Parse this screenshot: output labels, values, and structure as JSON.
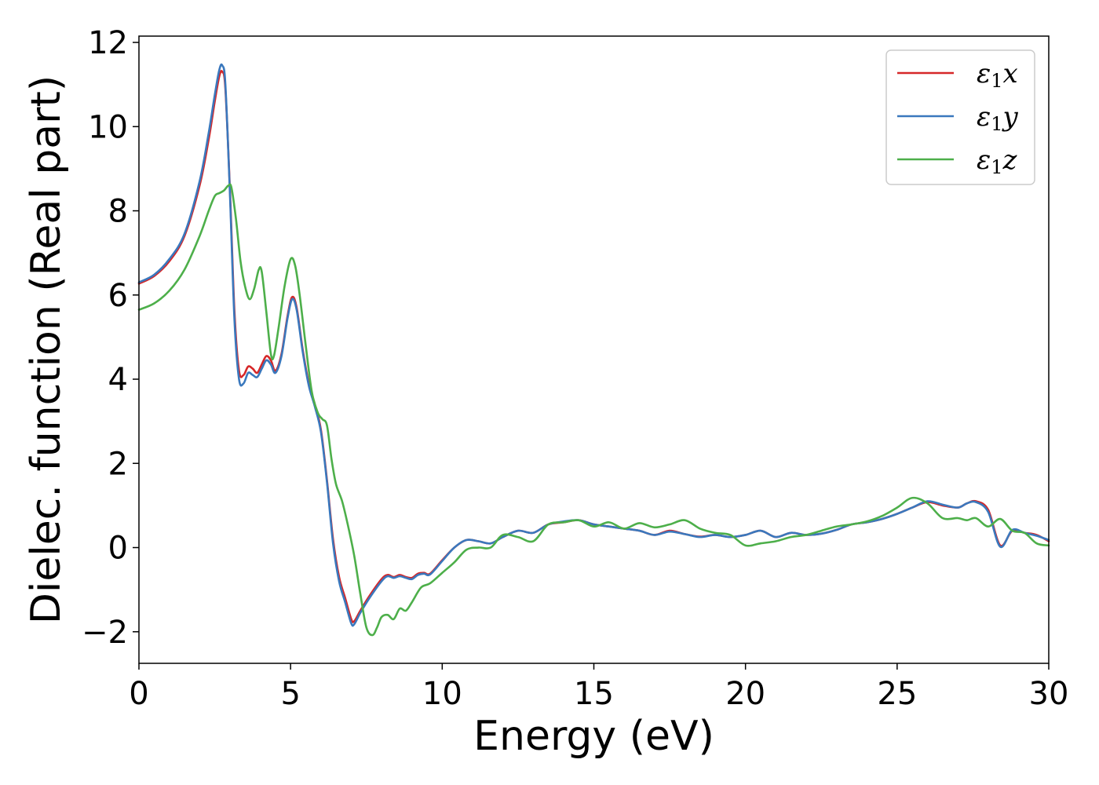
{
  "chart_data": {
    "type": "line",
    "xlabel": "Energy (eV)",
    "ylabel": "Dielec. function (Real part)",
    "xlim": [
      0,
      30
    ],
    "ylim": [
      -2.75,
      12.15
    ],
    "xticks": [
      0,
      5,
      10,
      15,
      20,
      25,
      30
    ],
    "xtick_labels": [
      "0",
      "5",
      "10",
      "15",
      "20",
      "25",
      "30"
    ],
    "yticks": [
      -2,
      0,
      2,
      4,
      6,
      8,
      10,
      12
    ],
    "ytick_labels": [
      "−2",
      "0",
      "2",
      "4",
      "6",
      "8",
      "10",
      "12"
    ],
    "grid": false,
    "legend_position": "top-right",
    "series": [
      {
        "name": "ε1x",
        "legend_main": "ε",
        "legend_sub": "1",
        "legend_tail": "x",
        "color": "#d62728",
        "x": [
          0,
          0.5,
          1.0,
          1.5,
          2.0,
          2.3,
          2.5,
          2.65,
          2.75,
          2.85,
          3.0,
          3.15,
          3.3,
          3.45,
          3.6,
          3.75,
          3.9,
          4.05,
          4.2,
          4.35,
          4.5,
          4.7,
          4.9,
          5.05,
          5.2,
          5.4,
          5.6,
          5.8,
          6.0,
          6.2,
          6.4,
          6.6,
          6.8,
          7.0,
          7.1,
          7.3,
          7.6,
          8.0,
          8.2,
          8.4,
          8.6,
          8.8,
          9.0,
          9.2,
          9.4,
          9.6,
          10.0,
          10.4,
          10.8,
          11.2,
          11.6,
          12.0,
          12.5,
          13.0,
          13.5,
          14.0,
          14.5,
          15.0,
          15.5,
          16.0,
          16.5,
          17.0,
          17.5,
          18.0,
          18.5,
          19.0,
          19.5,
          20.0,
          20.5,
          21.0,
          21.5,
          22.0,
          22.5,
          23.0,
          23.5,
          24.0,
          24.5,
          25.0,
          25.5,
          26.0,
          26.5,
          27.0,
          27.3,
          27.6,
          28.0,
          28.4,
          28.8,
          29.2,
          29.6,
          30.0
        ],
        "y": [
          6.27,
          6.45,
          6.8,
          7.4,
          8.6,
          9.7,
          10.6,
          11.2,
          11.3,
          10.9,
          8.5,
          5.6,
          4.2,
          4.1,
          4.3,
          4.25,
          4.15,
          4.35,
          4.55,
          4.45,
          4.2,
          4.6,
          5.5,
          5.95,
          5.7,
          4.7,
          3.9,
          3.4,
          2.8,
          1.6,
          0.2,
          -0.7,
          -1.2,
          -1.7,
          -1.75,
          -1.5,
          -1.15,
          -0.75,
          -0.65,
          -0.7,
          -0.65,
          -0.7,
          -0.72,
          -0.62,
          -0.6,
          -0.62,
          -0.3,
          0.0,
          0.18,
          0.15,
          0.1,
          0.25,
          0.4,
          0.35,
          0.55,
          0.6,
          0.65,
          0.55,
          0.5,
          0.45,
          0.4,
          0.3,
          0.4,
          0.32,
          0.26,
          0.3,
          0.25,
          0.3,
          0.4,
          0.25,
          0.35,
          0.3,
          0.33,
          0.42,
          0.55,
          0.6,
          0.68,
          0.8,
          0.95,
          1.08,
          1.0,
          0.95,
          1.05,
          1.1,
          0.9,
          0.05,
          0.4,
          0.35,
          0.3,
          0.15
        ]
      },
      {
        "name": "ε1y",
        "legend_main": "ε",
        "legend_sub": "1",
        "legend_tail": "y",
        "color": "#3a78bd",
        "x": [
          0,
          0.5,
          1.0,
          1.5,
          2.0,
          2.3,
          2.5,
          2.65,
          2.75,
          2.85,
          3.0,
          3.15,
          3.3,
          3.45,
          3.6,
          3.75,
          3.9,
          4.05,
          4.2,
          4.35,
          4.5,
          4.7,
          4.9,
          5.05,
          5.2,
          5.4,
          5.6,
          5.8,
          6.0,
          6.2,
          6.4,
          6.6,
          6.8,
          7.0,
          7.1,
          7.3,
          7.6,
          8.0,
          8.2,
          8.4,
          8.6,
          8.8,
          9.0,
          9.2,
          9.4,
          9.6,
          10.0,
          10.4,
          10.8,
          11.2,
          11.6,
          12.0,
          12.5,
          13.0,
          13.5,
          14.0,
          14.5,
          15.0,
          15.5,
          16.0,
          16.5,
          17.0,
          17.5,
          18.0,
          18.5,
          19.0,
          19.5,
          20.0,
          20.5,
          21.0,
          21.5,
          22.0,
          22.5,
          23.0,
          23.5,
          24.0,
          24.5,
          25.0,
          25.5,
          26.0,
          26.5,
          27.0,
          27.3,
          27.6,
          28.0,
          28.4,
          28.8,
          29.2,
          29.6,
          30.0
        ],
        "y": [
          6.3,
          6.48,
          6.85,
          7.45,
          8.7,
          9.85,
          10.75,
          11.35,
          11.45,
          11.0,
          8.4,
          5.4,
          4.0,
          3.9,
          4.15,
          4.1,
          4.05,
          4.25,
          4.45,
          4.35,
          4.15,
          4.55,
          5.45,
          5.9,
          5.65,
          4.65,
          3.85,
          3.35,
          2.75,
          1.55,
          0.1,
          -0.8,
          -1.3,
          -1.8,
          -1.82,
          -1.55,
          -1.2,
          -0.8,
          -0.68,
          -0.72,
          -0.68,
          -0.72,
          -0.75,
          -0.65,
          -0.62,
          -0.64,
          -0.32,
          0.0,
          0.18,
          0.15,
          0.1,
          0.25,
          0.4,
          0.35,
          0.55,
          0.62,
          0.65,
          0.55,
          0.5,
          0.45,
          0.4,
          0.3,
          0.38,
          0.32,
          0.25,
          0.3,
          0.25,
          0.3,
          0.4,
          0.25,
          0.35,
          0.3,
          0.33,
          0.42,
          0.55,
          0.6,
          0.68,
          0.8,
          0.95,
          1.1,
          1.02,
          0.95,
          1.05,
          1.08,
          0.85,
          0.02,
          0.42,
          0.35,
          0.28,
          0.18
        ]
      },
      {
        "name": "ε1z",
        "legend_main": "ε",
        "legend_sub": "1",
        "legend_tail": "z",
        "color": "#4daf4a",
        "x": [
          0,
          0.5,
          1.0,
          1.5,
          2.0,
          2.3,
          2.5,
          2.65,
          2.8,
          2.95,
          3.05,
          3.2,
          3.35,
          3.5,
          3.65,
          3.8,
          3.95,
          4.05,
          4.2,
          4.35,
          4.45,
          4.6,
          4.8,
          5.0,
          5.15,
          5.3,
          5.5,
          5.7,
          5.9,
          6.05,
          6.2,
          6.35,
          6.5,
          6.7,
          6.9,
          7.1,
          7.3,
          7.5,
          7.7,
          7.85,
          8.0,
          8.2,
          8.4,
          8.6,
          8.8,
          9.0,
          9.3,
          9.6,
          10.0,
          10.4,
          10.8,
          11.2,
          11.6,
          12.0,
          12.5,
          13.0,
          13.5,
          14.0,
          14.5,
          15.0,
          15.5,
          16.0,
          16.5,
          17.0,
          17.5,
          18.0,
          18.5,
          19.0,
          19.5,
          20.0,
          20.5,
          21.0,
          21.5,
          22.0,
          22.5,
          23.0,
          23.5,
          24.0,
          24.5,
          25.0,
          25.5,
          26.0,
          26.5,
          27.0,
          27.3,
          27.6,
          28.0,
          28.4,
          28.8,
          29.2,
          29.6,
          30.0
        ],
        "y": [
          5.65,
          5.8,
          6.1,
          6.6,
          7.4,
          8.0,
          8.35,
          8.42,
          8.48,
          8.6,
          8.55,
          7.8,
          6.8,
          6.2,
          5.9,
          6.15,
          6.6,
          6.55,
          5.6,
          4.6,
          4.55,
          5.2,
          6.2,
          6.85,
          6.7,
          6.0,
          4.8,
          3.7,
          3.2,
          3.05,
          2.9,
          2.1,
          1.5,
          1.1,
          0.5,
          -0.2,
          -1.1,
          -1.9,
          -2.08,
          -1.9,
          -1.65,
          -1.6,
          -1.7,
          -1.45,
          -1.5,
          -1.3,
          -0.95,
          -0.85,
          -0.6,
          -0.35,
          -0.05,
          0.0,
          0.0,
          0.3,
          0.25,
          0.15,
          0.55,
          0.6,
          0.65,
          0.5,
          0.6,
          0.45,
          0.58,
          0.48,
          0.55,
          0.65,
          0.45,
          0.35,
          0.3,
          0.05,
          0.1,
          0.15,
          0.25,
          0.3,
          0.4,
          0.5,
          0.55,
          0.62,
          0.75,
          0.95,
          1.18,
          1.05,
          0.7,
          0.7,
          0.65,
          0.7,
          0.5,
          0.68,
          0.4,
          0.35,
          0.1,
          0.05
        ]
      }
    ]
  }
}
